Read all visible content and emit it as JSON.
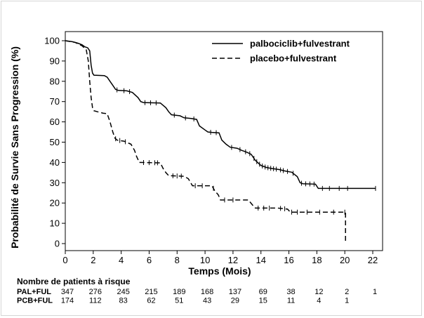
{
  "chart_data": {
    "type": "line",
    "xlabel": "Temps (Mois)",
    "ylabel": "Probabilité de Survie Sans Progression (%)",
    "xlim": [
      0,
      22
    ],
    "ylim": [
      0,
      100
    ],
    "xticks": [
      0,
      2,
      4,
      6,
      8,
      10,
      12,
      14,
      16,
      18,
      20,
      22
    ],
    "yticks": [
      0,
      10,
      20,
      30,
      40,
      50,
      60,
      70,
      80,
      90,
      100
    ],
    "grid": false,
    "legend_position": "top-right",
    "series": [
      {
        "name": "palbociclib+fulvestrant",
        "style": "solid",
        "color": "#000000",
        "points": [
          [
            0,
            100
          ],
          [
            0.5,
            99.5
          ],
          [
            0.9,
            98.8
          ],
          [
            1.2,
            98
          ],
          [
            1.4,
            97
          ],
          [
            1.6,
            96.5
          ],
          [
            1.75,
            95
          ],
          [
            1.85,
            88
          ],
          [
            1.95,
            84
          ],
          [
            2.05,
            83
          ],
          [
            2.8,
            82.8
          ],
          [
            3.0,
            82
          ],
          [
            3.2,
            80
          ],
          [
            3.4,
            78
          ],
          [
            3.6,
            76
          ],
          [
            3.8,
            75.5
          ],
          [
            4.4,
            75.3
          ],
          [
            4.8,
            74.5
          ],
          [
            5.2,
            72
          ],
          [
            5.4,
            70
          ],
          [
            5.6,
            69.5
          ],
          [
            6.8,
            69.3
          ],
          [
            7.2,
            67
          ],
          [
            7.4,
            65
          ],
          [
            7.6,
            63.5
          ],
          [
            8.2,
            63
          ],
          [
            8.5,
            62
          ],
          [
            9.0,
            61.7
          ],
          [
            9.4,
            61.2
          ],
          [
            9.6,
            58
          ],
          [
            10.0,
            56
          ],
          [
            10.2,
            55
          ],
          [
            10.5,
            54.8
          ],
          [
            11.0,
            54.6
          ],
          [
            11.2,
            51
          ],
          [
            11.5,
            49
          ],
          [
            11.8,
            47.5
          ],
          [
            12.3,
            47
          ],
          [
            12.6,
            46
          ],
          [
            13.0,
            45
          ],
          [
            13.3,
            44
          ],
          [
            13.6,
            41
          ],
          [
            14.0,
            38.5
          ],
          [
            14.4,
            37.5
          ],
          [
            14.8,
            37
          ],
          [
            15.3,
            36.5
          ],
          [
            15.7,
            35.8
          ],
          [
            16.2,
            35.2
          ],
          [
            16.6,
            33
          ],
          [
            16.8,
            30
          ],
          [
            17.0,
            29.5
          ],
          [
            17.9,
            29.3
          ],
          [
            18.1,
            27.2
          ],
          [
            22.2,
            27.2
          ]
        ],
        "censor_x": [
          3.7,
          4.2,
          4.6,
          5.7,
          6.1,
          6.5,
          7.8,
          8.6,
          9.2,
          10.4,
          10.8,
          11.9,
          12.5,
          12.9,
          13.2,
          13.5,
          13.7,
          13.9,
          14.1,
          14.3,
          14.5,
          14.7,
          14.9,
          15.1,
          15.4,
          15.6,
          15.9,
          16.3,
          16.9,
          17.2,
          17.5,
          17.8,
          18.4,
          18.9,
          19.6,
          20.2,
          22.2
        ]
      },
      {
        "name": "placebo+fulvestrant",
        "style": "dashed",
        "color": "#000000",
        "points": [
          [
            0,
            100
          ],
          [
            0.7,
            99.2
          ],
          [
            1.2,
            97.5
          ],
          [
            1.5,
            95.5
          ],
          [
            1.65,
            90
          ],
          [
            1.75,
            80
          ],
          [
            1.85,
            72
          ],
          [
            1.95,
            67
          ],
          [
            2.05,
            65.5
          ],
          [
            2.3,
            65
          ],
          [
            2.7,
            64.3
          ],
          [
            3.0,
            64
          ],
          [
            3.2,
            60
          ],
          [
            3.4,
            55
          ],
          [
            3.55,
            52
          ],
          [
            3.7,
            51
          ],
          [
            4.2,
            50.5
          ],
          [
            4.7,
            49
          ],
          [
            4.95,
            46
          ],
          [
            5.1,
            43
          ],
          [
            5.3,
            40
          ],
          [
            6.8,
            39.8
          ],
          [
            7.0,
            37
          ],
          [
            7.2,
            35
          ],
          [
            7.4,
            33.5
          ],
          [
            8.5,
            33.2
          ],
          [
            8.8,
            32
          ],
          [
            9.1,
            28.5
          ],
          [
            10.5,
            28.5
          ],
          [
            10.7,
            26
          ],
          [
            10.95,
            24
          ],
          [
            11.1,
            21.5
          ],
          [
            13.1,
            21.5
          ],
          [
            13.4,
            19
          ],
          [
            13.6,
            17.5
          ],
          [
            15.2,
            17.5
          ],
          [
            15.9,
            17
          ],
          [
            16.1,
            15.5
          ],
          [
            18.0,
            15.5
          ],
          [
            19.8,
            15.5
          ],
          [
            20.05,
            15.5
          ],
          [
            20.05,
            0
          ]
        ],
        "censor_x": [
          3.6,
          3.9,
          4.3,
          5.6,
          6.0,
          6.4,
          6.6,
          7.7,
          8.0,
          8.3,
          9.3,
          9.8,
          10.6,
          11.4,
          12.0,
          13.8,
          14.2,
          14.6,
          15.4,
          15.7,
          16.2,
          16.6,
          17.3,
          18.2,
          19.2,
          20.0
        ]
      }
    ],
    "risk_table": {
      "title": "Nombre de patients à risque",
      "times": [
        0,
        2,
        4,
        6,
        8,
        10,
        12,
        14,
        16,
        18,
        20,
        22
      ],
      "rows": [
        {
          "label": "PAL+FUL",
          "values": [
            "347",
            "276",
            "245",
            "215",
            "189",
            "168",
            "137",
            "69",
            "38",
            "12",
            "2",
            "1"
          ]
        },
        {
          "label": "PCB+FUL",
          "values": [
            "174",
            "112",
            "83",
            "62",
            "51",
            "43",
            "29",
            "15",
            "11",
            "4",
            "1",
            ""
          ]
        }
      ]
    }
  }
}
